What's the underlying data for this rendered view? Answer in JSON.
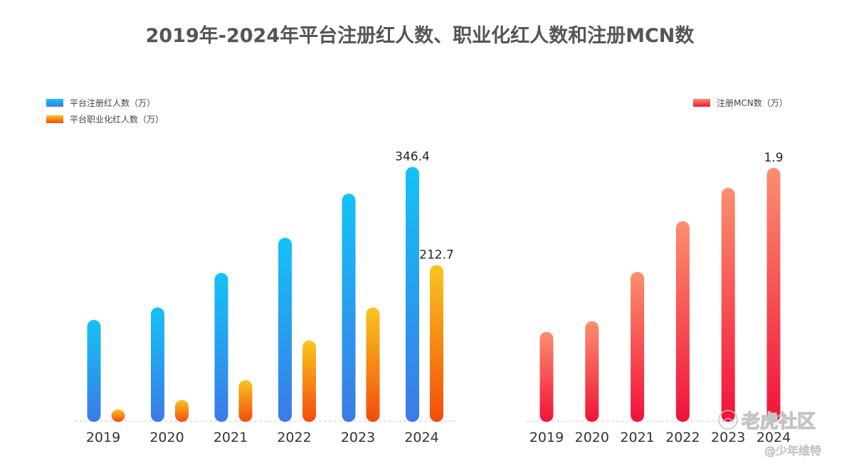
{
  "title": "2019年-2024年平台注册红人数、职业化红人数和注册MCN数",
  "colors": {
    "blue_top": "#14c2f6",
    "blue_bottom": "#3b7be6",
    "orange_top": "#f8c61e",
    "orange_bottom": "#f44b0c",
    "red_top": "#fb8f6e",
    "red_bottom": "#f2123a"
  },
  "chart_data": [
    {
      "type": "bar",
      "categories": [
        "2019",
        "2020",
        "2021",
        "2022",
        "2023",
        "2024"
      ],
      "series": [
        {
          "name": "平台注册红人数（万）",
          "values": [
            138,
            155,
            202,
            250,
            310,
            346.4
          ]
        },
        {
          "name": "平台职业化红人数（万）",
          "values": [
            16,
            29,
            56,
            110,
            155,
            212.7
          ]
        }
      ],
      "data_labels": {
        "0": {
          "5": "346.4"
        },
        "1": {
          "5": "212.7"
        }
      },
      "ylim": [
        0,
        380
      ],
      "legend_position": "top-left",
      "grid": false
    },
    {
      "type": "bar",
      "categories": [
        "2019",
        "2020",
        "2021",
        "2022",
        "2023",
        "2024"
      ],
      "series": [
        {
          "name": "注册MCN数（万）",
          "values": [
            0.67,
            0.75,
            1.12,
            1.5,
            1.75,
            1.9
          ]
        }
      ],
      "data_labels": {
        "0": {
          "5": "1.9"
        }
      },
      "ylim": [
        0,
        2.0
      ],
      "legend_position": "top-right",
      "grid": false
    }
  ],
  "watermark": {
    "main": "老虎社区",
    "sub": "@少年维特"
  }
}
